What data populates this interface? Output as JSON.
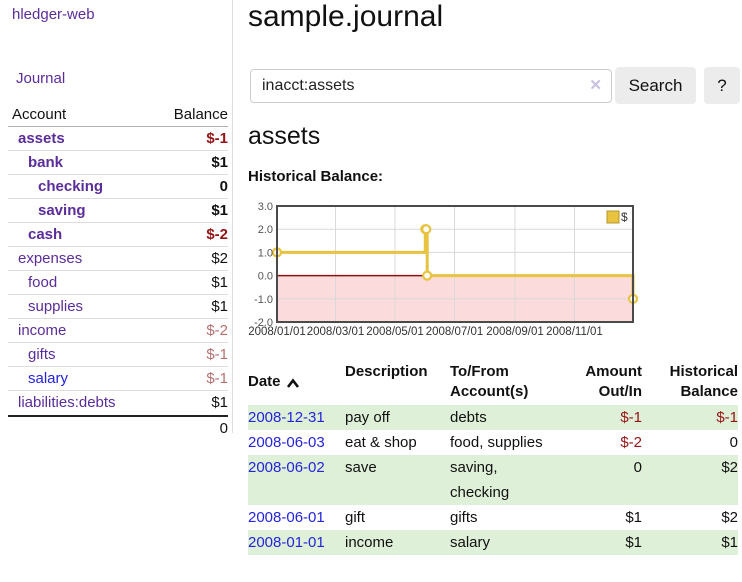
{
  "app": {
    "title": "hledger-web"
  },
  "sidebar": {
    "journal_link": "Journal",
    "table": {
      "headers": {
        "account": "Account",
        "balance": "Balance"
      },
      "rows": [
        {
          "account": "assets",
          "balance": "$-1",
          "depth": 1,
          "bold": true,
          "link_style": "visited"
        },
        {
          "account": "bank",
          "balance": "$1",
          "depth": 2,
          "bold": true,
          "link_style": "visited"
        },
        {
          "account": "checking",
          "balance": "0",
          "depth": 3,
          "bold": true,
          "link_style": "visited"
        },
        {
          "account": "saving",
          "balance": "$1",
          "depth": 3,
          "bold": true,
          "link_style": "visited"
        },
        {
          "account": "cash",
          "balance": "$-2",
          "depth": 2,
          "bold": true,
          "link_style": "visited"
        },
        {
          "account": "expenses",
          "balance": "$2",
          "depth": 1,
          "bold": false,
          "link_style": "visited"
        },
        {
          "account": "food",
          "balance": "$1",
          "depth": 2,
          "bold": false,
          "link_style": "visited"
        },
        {
          "account": "supplies",
          "balance": "$1",
          "depth": 2,
          "bold": false,
          "link_style": "visited"
        },
        {
          "account": "income",
          "balance": "$-2",
          "depth": 1,
          "bold": false,
          "link_style": "visited"
        },
        {
          "account": "gifts",
          "balance": "$-1",
          "depth": 2,
          "bold": false,
          "link_style": "visited"
        },
        {
          "account": "salary",
          "balance": "$-1",
          "depth": 2,
          "bold": false,
          "link_style": "unvisited"
        },
        {
          "account": "liabilities:debts",
          "balance": "$1",
          "depth": 1,
          "bold": false,
          "link_style": "visited"
        }
      ],
      "total": "0"
    }
  },
  "main": {
    "page_title": "sample.journal",
    "search": {
      "value": "inacct:assets",
      "clear_icon": "✕",
      "button_label": "Search",
      "help_label": "?"
    },
    "account_heading": "assets",
    "chart_label": "Historical Balance:"
  },
  "chart_data": {
    "type": "line",
    "step": true,
    "title": "Historical Balance",
    "xlabel": "",
    "ylabel": "",
    "xlim": [
      "2008-01-01",
      "2008-12-31"
    ],
    "ylim": [
      -2,
      3
    ],
    "y_ticks": [
      3,
      2,
      1,
      0,
      -1,
      -2
    ],
    "x_ticks": [
      {
        "date": "2008-01-01",
        "label": "2008/01/01"
      },
      {
        "date": "2008-03-01",
        "label": "2008/03/01"
      },
      {
        "date": "2008-05-01",
        "label": "2008/05/01"
      },
      {
        "date": "2008-07-01",
        "label": "2008/07/01"
      },
      {
        "date": "2008-09-01",
        "label": "2008/09/01"
      },
      {
        "date": "2008-11-01",
        "label": "2008/11/01"
      }
    ],
    "series": [
      {
        "name": "$",
        "color": "#e8c33f",
        "points": [
          {
            "date": "2008-01-01",
            "value": 1
          },
          {
            "date": "2008-06-01",
            "value": 2
          },
          {
            "date": "2008-06-02",
            "value": 2
          },
          {
            "date": "2008-06-03",
            "value": 0
          },
          {
            "date": "2008-12-31",
            "value": -1
          }
        ]
      }
    ],
    "legend": {
      "label": "$",
      "position": "top-right"
    },
    "grid": true,
    "negative_region_color": "#fbdbdb",
    "zero_line_color": "#8e1111"
  },
  "register_table": {
    "headers": {
      "date": "Date",
      "description": "Description",
      "tofrom_line1": "To/From",
      "tofrom_line2": "Account(s)",
      "amount_line1": "Amount",
      "amount_line2": "Out/In",
      "balance_line1": "Historical",
      "balance_line2": "Balance"
    },
    "rows": [
      {
        "date": "2008-12-31",
        "description": "pay off",
        "accounts": [
          "debts"
        ],
        "amount": "$-1",
        "balance": "$-1"
      },
      {
        "date": "2008-06-03",
        "description": "eat & shop",
        "accounts": [
          "food, supplies"
        ],
        "amount": "$-2",
        "balance": "0"
      },
      {
        "date": "2008-06-02",
        "description": "save",
        "accounts": [
          "saving,",
          "checking"
        ],
        "amount": "0",
        "balance": "$2"
      },
      {
        "date": "2008-06-01",
        "description": "gift",
        "accounts": [
          "gifts"
        ],
        "amount": "$1",
        "balance": "$2"
      },
      {
        "date": "2008-01-01",
        "description": "income",
        "accounts": [
          "salary"
        ],
        "amount": "$1",
        "balance": "$1"
      }
    ]
  },
  "colors": {
    "link_purple": "#5b2d9b",
    "link_blue": "#2424dd",
    "negative_strong": "#941414",
    "negative_muted": "#b96f6f",
    "row_stripe_green": "#dff0d8",
    "series_gold": "#e8c33f"
  }
}
